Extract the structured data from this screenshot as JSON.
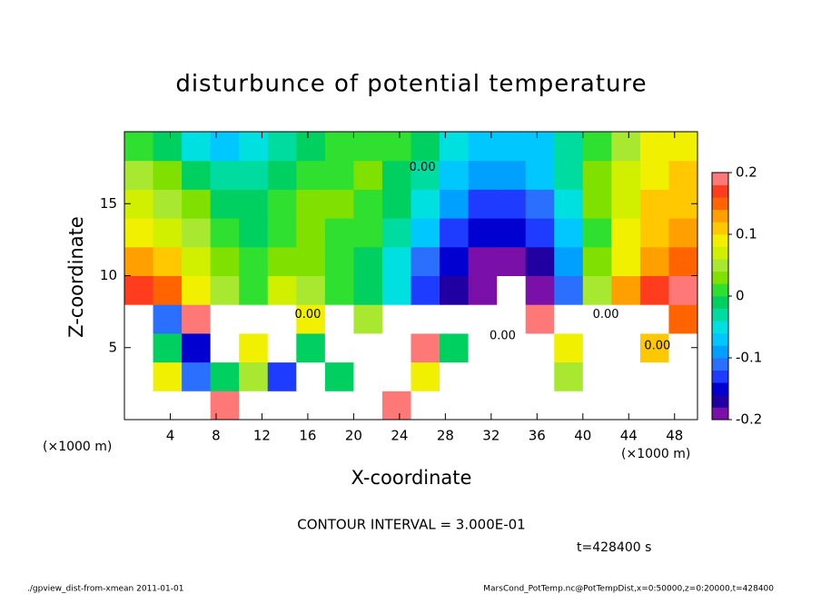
{
  "chart_data": {
    "type": "contour",
    "title": "disturbunce of potential temperature",
    "x_label": "X-coordinate",
    "y_label": "Z-coordinate",
    "x_unit": "(×1000 m)",
    "xlim": [
      0,
      50
    ],
    "ylim": [
      0,
      20
    ],
    "xticks": [
      4,
      8,
      12,
      16,
      20,
      24,
      28,
      32,
      36,
      40,
      44,
      48
    ],
    "yticks": [
      5,
      10,
      15
    ],
    "x": [
      1.25,
      3.75,
      6.25,
      8.75,
      11.25,
      13.75,
      16.25,
      18.75,
      21.25,
      23.75,
      26.25,
      28.75,
      31.25,
      33.75,
      36.25,
      38.75,
      41.25,
      43.75,
      46.25,
      48.75
    ],
    "y": [
      1,
      3,
      5,
      7,
      9,
      11,
      13,
      15,
      17,
      19
    ],
    "values": [
      [
        0.5,
        0.3,
        0.4,
        0.2,
        0.5,
        0.5,
        0.3,
        0.5,
        0.6,
        0.2,
        0.5,
        0.4,
        0.5,
        0.3,
        0.4,
        0.5,
        0.6,
        0.5,
        0.4,
        0.5
      ],
      [
        0.4,
        0.1,
        -0.1,
        0.0,
        0.05,
        -0.12,
        0.4,
        0.0,
        0.5,
        0.3,
        0.1,
        0.4,
        0.5,
        0.6,
        0.4,
        0.05,
        0.5,
        0.4,
        0.5,
        0.3
      ],
      [
        0.4,
        0.0,
        -0.15,
        0.4,
        0.1,
        0.5,
        0.0,
        0.3,
        0.5,
        0.6,
        0.2,
        0.0,
        0.5,
        0.6,
        0.4,
        0.1,
        0.3,
        0.5,
        0.12,
        0.3
      ],
      [
        0.3,
        -0.1,
        0.2,
        0.5,
        -0.3,
        0.4,
        0.1,
        0.3,
        0.05,
        0.5,
        0.4,
        0.3,
        0.4,
        0.5,
        0.2,
        0.3,
        0.4,
        0.3,
        0.3,
        0.15
      ],
      [
        0.17,
        0.15,
        0.1,
        0.06,
        0.02,
        0.07,
        0.05,
        0.02,
        0.0,
        -0.05,
        -0.12,
        -0.17,
        -0.2,
        -0.25,
        -0.2,
        -0.1,
        0.05,
        0.13,
        0.18,
        0.19
      ],
      [
        0.13,
        0.11,
        0.07,
        0.04,
        0.01,
        0.04,
        0.03,
        0.01,
        0.0,
        -0.04,
        -0.1,
        -0.15,
        -0.18,
        -0.18,
        -0.16,
        -0.09,
        0.03,
        0.1,
        0.14,
        0.15
      ],
      [
        0.1,
        0.08,
        0.05,
        0.02,
        0.0,
        0.02,
        0.03,
        0.02,
        0.01,
        -0.02,
        -0.07,
        -0.12,
        -0.15,
        -0.15,
        -0.13,
        -0.07,
        0.02,
        0.09,
        0.12,
        0.13
      ],
      [
        0.08,
        0.06,
        0.03,
        0.0,
        -0.01,
        0.01,
        0.03,
        0.03,
        0.02,
        -0.01,
        -0.05,
        -0.09,
        -0.12,
        -0.12,
        -0.1,
        -0.05,
        0.03,
        0.08,
        0.11,
        0.12
      ],
      [
        0.05,
        0.03,
        0.0,
        -0.02,
        -0.02,
        0.0,
        0.02,
        0.02,
        0.03,
        0.0,
        -0.03,
        -0.06,
        -0.09,
        -0.09,
        -0.07,
        -0.03,
        0.03,
        0.08,
        0.1,
        0.11
      ],
      [
        0.02,
        0.0,
        -0.04,
        -0.06,
        -0.05,
        -0.02,
        0.0,
        0.01,
        0.02,
        0.01,
        -0.01,
        -0.04,
        -0.06,
        -0.07,
        -0.06,
        -0.03,
        0.02,
        0.06,
        0.09,
        0.1
      ]
    ],
    "levels": [
      -0.2,
      -0.18,
      -0.16,
      -0.14,
      -0.12,
      -0.1,
      -0.08,
      -0.06,
      -0.04,
      -0.02,
      0,
      0.02,
      0.04,
      0.06,
      0.08,
      0.1,
      0.12,
      0.14,
      0.16,
      0.18,
      0.2
    ],
    "colors": [
      "#7a10a8",
      "#2000a0",
      "#0000d0",
      "#1e3cff",
      "#2a6fff",
      "#00a0ff",
      "#00c8ff",
      "#00e0e0",
      "#00dca0",
      "#00d060",
      "#30e030",
      "#80e000",
      "#a8e830",
      "#d0f000",
      "#f0f000",
      "#ffc800",
      "#ffa000",
      "#ff6400",
      "#ff3c1e",
      "#ff7878"
    ],
    "out_of_range_color": "#ffffff",
    "colorbar_ticks": [
      -0.2,
      -0.1,
      0,
      0.1,
      0.2
    ],
    "annotations": [
      {
        "text": "0.00",
        "x": 26,
        "y": 17.5
      },
      {
        "text": "0.00",
        "x": 16,
        "y": 7.3
      },
      {
        "text": "0.00",
        "x": 42,
        "y": 7.3
      },
      {
        "text": "0.00",
        "x": 46.5,
        "y": 5.1
      },
      {
        "text": "0.00",
        "x": 33,
        "y": 5.8
      }
    ],
    "contour_interval": "CONTOUR INTERVAL = 3.000E-01",
    "time_label": "t=428400 s",
    "footer_left": "./gpview_dist-from-xmean  2011-01-01",
    "footer_right": "MarsCond_PotTemp.nc@PotTempDist,x=0:50000,z=0:20000,t=428400"
  }
}
